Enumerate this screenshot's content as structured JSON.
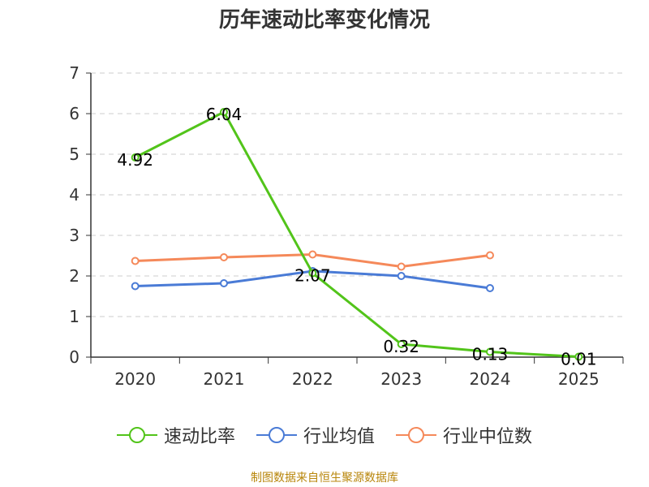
{
  "chart_data": {
    "type": "line",
    "title": "历年速动比率变化情况",
    "categories": [
      "2020",
      "2021",
      "2022",
      "2023",
      "2024",
      "2025"
    ],
    "y_ticks": [
      "0",
      "1",
      "2",
      "3",
      "4",
      "5",
      "6",
      "7"
    ],
    "ylim": [
      0,
      7
    ],
    "grid": true,
    "legend_position": "bottom",
    "series": [
      {
        "name": "速动比率",
        "color": "#52c41a",
        "values": [
          4.92,
          6.04,
          2.07,
          0.32,
          0.13,
          0.01
        ],
        "data_labels": [
          "4.92",
          "6.04",
          "2.07",
          "0.32",
          "0.13",
          "0.01"
        ]
      },
      {
        "name": "行业均值",
        "color": "#4a7bd6",
        "values": [
          1.75,
          1.82,
          2.12,
          2.0,
          1.7,
          null
        ]
      },
      {
        "name": "行业中位数",
        "color": "#f5895a",
        "values": [
          2.37,
          2.46,
          2.53,
          2.23,
          2.51,
          null
        ]
      }
    ]
  },
  "source": "制图数据来自恒生聚源数据库"
}
